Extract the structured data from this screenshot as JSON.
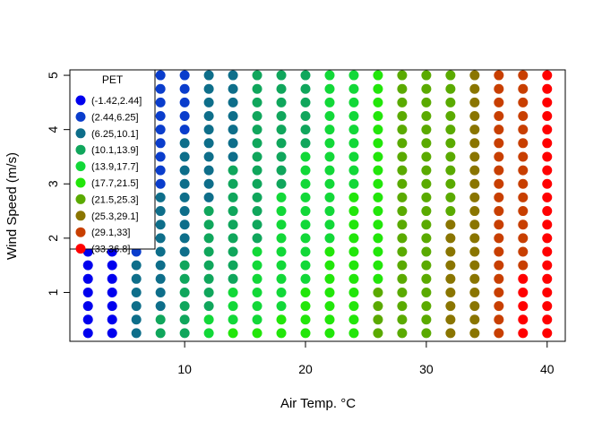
{
  "chart_data": {
    "type": "scatter",
    "xlabel": "Air Temp. °C",
    "ylabel": "Wind Speed (m/s)",
    "xlim": [
      0.5,
      41.5
    ],
    "ylim": [
      0.1,
      5.1
    ],
    "x_ticks": [
      10,
      20,
      30,
      40
    ],
    "x_tick_labels": [
      "10",
      "20",
      "30",
      "40"
    ],
    "y_ticks": [
      1,
      2,
      3,
      4,
      5
    ],
    "y_tick_labels": [
      "1",
      "2",
      "3",
      "4",
      "5"
    ],
    "grid": false,
    "legend_position": "top-left",
    "x": [
      2,
      4,
      6,
      8,
      10,
      12,
      14,
      16,
      18,
      20,
      22,
      24,
      26,
      28,
      30,
      32,
      34,
      36,
      38,
      40
    ],
    "y": [
      0.25,
      0.5,
      0.75,
      1.0,
      1.25,
      1.5,
      1.75,
      2.0,
      2.25,
      2.5,
      2.75,
      3.0,
      3.25,
      3.5,
      3.75,
      4.0,
      4.25,
      4.5,
      4.75,
      5.0
    ],
    "legend": {
      "title": "PET",
      "classes": [
        {
          "label": "(-1.42,2.44]",
          "color": "#0000ee"
        },
        {
          "label": "(2.44,6.25]",
          "color": "#0a3dcc"
        },
        {
          "label": "(6.25,10.1]",
          "color": "#0e6e8a"
        },
        {
          "label": "(10.1,13.9]",
          "color": "#10a65c"
        },
        {
          "label": "(13.9,17.7]",
          "color": "#12d838"
        },
        {
          "label": "(17.7,21.5]",
          "color": "#22e60a"
        },
        {
          "label": "(21.5,25.3]",
          "color": "#5aaa00"
        },
        {
          "label": "(25.3,29.1]",
          "color": "#8a7500"
        },
        {
          "label": "(29.1,33]",
          "color": "#c83f00"
        },
        {
          "label": "(33,36.8]",
          "color": "#ff0000"
        }
      ]
    },
    "class_grid_note": "class_grid[i][j] = PET class index (0-9) for y[i] (row, bottom to top) and x[j] (column)",
    "class_grid": [
      [
        0,
        0,
        2,
        3,
        3,
        4,
        5,
        5,
        5,
        5,
        5,
        5,
        6,
        6,
        6,
        7,
        7,
        8,
        9,
        9
      ],
      [
        0,
        0,
        2,
        3,
        3,
        4,
        4,
        4,
        5,
        5,
        5,
        5,
        6,
        6,
        6,
        7,
        7,
        8,
        9,
        9
      ],
      [
        0,
        0,
        2,
        2,
        3,
        3,
        4,
        4,
        4,
        5,
        5,
        5,
        6,
        6,
        6,
        7,
        7,
        8,
        9,
        9
      ],
      [
        0,
        0,
        2,
        2,
        3,
        3,
        4,
        4,
        4,
        5,
        5,
        5,
        6,
        6,
        6,
        7,
        7,
        8,
        9,
        9
      ],
      [
        0,
        0,
        2,
        2,
        3,
        3,
        3,
        4,
        4,
        4,
        5,
        5,
        5,
        6,
        6,
        7,
        7,
        8,
        9,
        9
      ],
      [
        0,
        0,
        2,
        2,
        3,
        3,
        3,
        4,
        4,
        4,
        5,
        5,
        5,
        6,
        6,
        7,
        7,
        8,
        8,
        9
      ],
      [
        0,
        0,
        1,
        2,
        2,
        3,
        3,
        4,
        4,
        4,
        5,
        5,
        5,
        6,
        6,
        7,
        7,
        8,
        8,
        9
      ],
      [
        0,
        0,
        1,
        2,
        2,
        3,
        3,
        3,
        4,
        4,
        4,
        5,
        5,
        6,
        6,
        7,
        7,
        8,
        8,
        9
      ],
      [
        0,
        0,
        1,
        2,
        2,
        3,
        3,
        3,
        4,
        4,
        4,
        5,
        5,
        6,
        6,
        7,
        7,
        8,
        8,
        9
      ],
      [
        0,
        0,
        1,
        2,
        2,
        3,
        3,
        3,
        4,
        4,
        4,
        5,
        5,
        6,
        6,
        6,
        7,
        8,
        8,
        9
      ],
      [
        0,
        0,
        1,
        2,
        2,
        2,
        3,
        3,
        4,
        4,
        4,
        5,
        5,
        6,
        6,
        6,
        7,
        8,
        8,
        9
      ],
      [
        0,
        0,
        1,
        1,
        2,
        2,
        3,
        3,
        3,
        4,
        4,
        4,
        5,
        6,
        6,
        6,
        7,
        8,
        8,
        9
      ],
      [
        0,
        0,
        1,
        1,
        2,
        2,
        3,
        3,
        3,
        4,
        4,
        4,
        5,
        6,
        6,
        6,
        7,
        8,
        8,
        9
      ],
      [
        0,
        0,
        1,
        1,
        2,
        2,
        2,
        3,
        3,
        4,
        4,
        4,
        5,
        6,
        6,
        6,
        7,
        8,
        8,
        9
      ],
      [
        0,
        0,
        1,
        1,
        2,
        2,
        2,
        3,
        3,
        3,
        4,
        4,
        5,
        6,
        6,
        6,
        7,
        8,
        8,
        9
      ],
      [
        0,
        0,
        1,
        1,
        1,
        2,
        2,
        3,
        3,
        3,
        4,
        4,
        5,
        6,
        6,
        6,
        7,
        8,
        8,
        9
      ],
      [
        0,
        0,
        1,
        1,
        1,
        2,
        2,
        3,
        3,
        3,
        4,
        4,
        5,
        6,
        6,
        6,
        7,
        8,
        8,
        9
      ],
      [
        0,
        0,
        1,
        1,
        1,
        2,
        2,
        3,
        3,
        3,
        4,
        4,
        5,
        6,
        6,
        6,
        7,
        8,
        8,
        9
      ],
      [
        0,
        0,
        1,
        1,
        1,
        2,
        2,
        3,
        3,
        3,
        4,
        4,
        5,
        6,
        6,
        6,
        7,
        8,
        8,
        9
      ],
      [
        0,
        0,
        1,
        1,
        1,
        2,
        2,
        3,
        3,
        3,
        4,
        4,
        5,
        6,
        6,
        6,
        7,
        8,
        8,
        9
      ]
    ]
  }
}
